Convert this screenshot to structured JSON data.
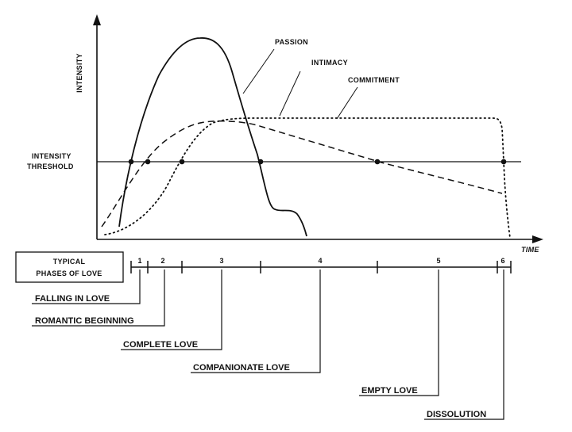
{
  "axes": {
    "y_label": "INTENSITY",
    "x_label": "TIME",
    "threshold_line1": "INTENSITY",
    "threshold_line2": "THRESHOLD"
  },
  "curves": [
    {
      "id": "passion",
      "label": "PASSION",
      "style": "solid"
    },
    {
      "id": "intimacy",
      "label": "INTIMACY",
      "style": "dashed"
    },
    {
      "id": "commitment",
      "label": "COMMITMENT",
      "style": "dotted"
    }
  ],
  "phases_box": {
    "line1": "TYPICAL",
    "line2": "PHASES OF LOVE"
  },
  "phase_numbers": [
    "1",
    "2",
    "3",
    "4",
    "5",
    "6"
  ],
  "phases": [
    {
      "number": "1",
      "label": "FALLING IN LOVE"
    },
    {
      "number": "2",
      "label": "ROMANTIC BEGINNING"
    },
    {
      "number": "3",
      "label": "COMPLETE LOVE"
    },
    {
      "number": "4",
      "label": "COMPANIONATE LOVE"
    },
    {
      "number": "5",
      "label": "EMPTY LOVE"
    },
    {
      "number": "6",
      "label": "DISSOLUTION"
    }
  ],
  "colors": {
    "ink": "#111111",
    "background": "#ffffff"
  }
}
